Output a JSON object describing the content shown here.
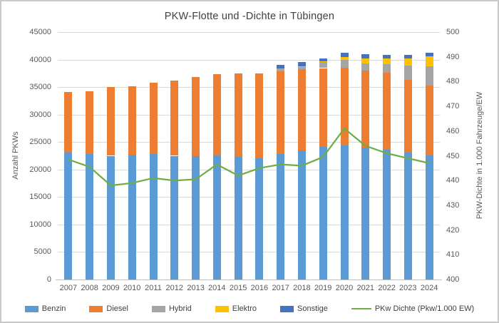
{
  "chart_data": {
    "type": "bar",
    "stacked": true,
    "title": "PKW-Flotte und -Dichte in Tübingen",
    "categories": [
      "2007",
      "2008",
      "2009",
      "2010",
      "2011",
      "2012",
      "2013",
      "2014",
      "2015",
      "2016",
      "2017",
      "2018",
      "2019",
      "2020",
      "2021",
      "2022",
      "2023",
      "2024"
    ],
    "series": [
      {
        "name": "Benzin",
        "color": "#5B9BD5",
        "values": [
          23100,
          22850,
          22500,
          22700,
          22800,
          22500,
          22400,
          22600,
          22300,
          22000,
          22800,
          23500,
          24100,
          24400,
          24000,
          23600,
          23050,
          22600
        ]
      },
      {
        "name": "Diesel",
        "color": "#ED7D31",
        "values": [
          11000,
          11450,
          12500,
          12500,
          13000,
          13700,
          14400,
          14700,
          15200,
          15450,
          15050,
          14700,
          14350,
          14100,
          14000,
          14000,
          13300,
          12650
        ]
      },
      {
        "name": "Hybrid",
        "color": "#A5A5A5",
        "values": [
          0,
          0,
          0,
          0,
          0,
          0,
          0,
          0,
          0,
          0,
          520,
          520,
          1050,
          1430,
          1340,
          1510,
          2560,
          3580
        ]
      },
      {
        "name": "Elektro",
        "color": "#FFC000",
        "values": [
          0,
          0,
          0,
          0,
          0,
          0,
          0,
          0,
          0,
          0,
          0,
          100,
          150,
          520,
          870,
          1040,
          1300,
          1740
        ]
      },
      {
        "name": "Sonstige",
        "color": "#4472C4",
        "values": [
          0,
          0,
          0,
          0,
          0,
          0,
          0,
          0,
          0,
          0,
          650,
          740,
          610,
          740,
          730,
          700,
          690,
          690
        ]
      }
    ],
    "line_series": {
      "name": "PKw Dichte (Pkw/1.000 EW)",
      "color": "#70AD47",
      "axis": "right",
      "values": [
        448.5,
        445.5,
        438,
        439,
        441,
        440,
        440.5,
        446.5,
        442,
        445,
        446.5,
        446,
        449.5,
        461,
        454,
        451,
        449,
        447
      ]
    },
    "left_axis": {
      "label": "Anzahl PKWs",
      "min": 0,
      "max": 45000,
      "step": 5000
    },
    "right_axis": {
      "label": "PKW-Dichte in 1.000 Fahrzeuge/EW",
      "min": 400,
      "max": 500,
      "step": 10
    },
    "grid": true,
    "legend_position": "bottom"
  }
}
